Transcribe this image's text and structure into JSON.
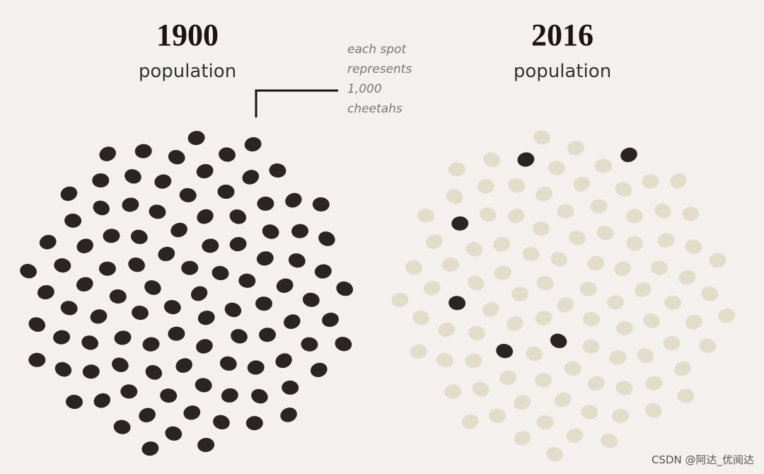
{
  "annotation": "each spot represents 1,000 cheetahs",
  "watermark": "CSDN @阿达_优阅达",
  "chart_data": [
    {
      "type": "unit",
      "title": "1900",
      "subtitle": "population",
      "series": [
        {
          "color": "#2b2424",
          "values": [
            100
          ]
        },
        {
          "color": "#e2dccb",
          "values": [
            0
          ]
        }
      ]
    },
    {
      "type": "unit",
      "title": "2016",
      "subtitle": "population",
      "series": [
        {
          "color": "#2b2424",
          "values": [
            6
          ]
        },
        {
          "color": "#e2dccb",
          "values": [
            94
          ]
        }
      ]
    }
  ]
}
